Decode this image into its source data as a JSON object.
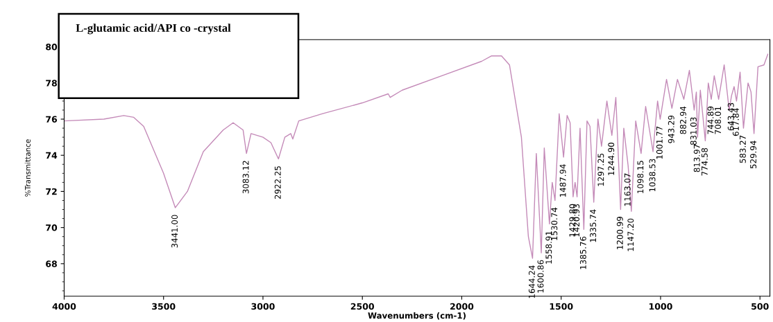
{
  "chart_data": {
    "type": "line",
    "title": "L-glutamic acid/API co -crystal",
    "xlabel": "Wavenumbers (cm-1)",
    "ylabel": "%Transmittance",
    "xlim": [
      4000,
      450
    ],
    "ylim": [
      66.2,
      80.4
    ],
    "xticks": [
      4000,
      3500,
      3000,
      2500,
      2000,
      1500,
      1000,
      500
    ],
    "yticks": [
      68,
      70,
      72,
      74,
      76,
      78,
      80
    ],
    "grid": false,
    "legend": false,
    "marker": "none",
    "line_style": "solid",
    "series": [
      {
        "color": "#c48ab8",
        "x": [
          4000,
          3800,
          3700,
          3650,
          3600,
          3500,
          3441,
          3380,
          3300,
          3200,
          3150,
          3100,
          3083,
          3060,
          3000,
          2960,
          2922,
          2890,
          2860,
          2850,
          2820,
          2700,
          2500,
          2370,
          2360,
          2300,
          2100,
          1900,
          1850,
          1800,
          1760,
          1700,
          1665,
          1644,
          1625,
          1600,
          1585,
          1559,
          1545,
          1531,
          1510,
          1488,
          1470,
          1455,
          1440,
          1430,
          1420,
          1405,
          1386,
          1370,
          1355,
          1336,
          1315,
          1297,
          1270,
          1245,
          1225,
          1201,
          1185,
          1163,
          1147,
          1125,
          1098,
          1075,
          1038,
          1015,
          1002,
          970,
          943,
          915,
          883,
          855,
          831,
          820,
          814,
          800,
          775,
          760,
          745,
          730,
          708,
          680,
          655,
          643,
          630,
          618,
          600,
          583,
          560,
          545,
          530,
          510,
          480,
          460
        ],
        "values": [
          75.9,
          76.0,
          76.2,
          76.1,
          75.6,
          73.0,
          71.1,
          72.0,
          74.2,
          75.4,
          75.8,
          75.4,
          74.1,
          75.2,
          75.0,
          74.7,
          73.8,
          75.0,
          75.2,
          74.9,
          75.9,
          76.3,
          76.9,
          77.4,
          77.2,
          77.6,
          78.4,
          79.2,
          79.5,
          79.5,
          79.0,
          75.0,
          69.5,
          68.3,
          74.1,
          68.6,
          74.4,
          70.2,
          72.5,
          71.5,
          76.3,
          73.9,
          76.2,
          75.8,
          71.7,
          72.5,
          71.7,
          75.5,
          69.9,
          75.9,
          75.6,
          71.4,
          76.0,
          74.5,
          77.0,
          75.1,
          77.2,
          71.0,
          75.5,
          73.4,
          70.9,
          75.9,
          74.1,
          76.7,
          74.2,
          77.0,
          76.0,
          78.2,
          76.6,
          78.2,
          77.1,
          78.7,
          76.5,
          77.5,
          75.0,
          77.6,
          74.8,
          78.0,
          77.1,
          78.4,
          77.1,
          79.0,
          76.5,
          77.3,
          77.8,
          77.0,
          78.6,
          75.5,
          78.0,
          77.5,
          75.2,
          78.9,
          79.0,
          79.6
        ]
      }
    ],
    "annotations": [
      {
        "text": "3441.00",
        "x": 3441,
        "y": 71.1
      },
      {
        "text": "3083.12",
        "x": 3083,
        "y": 74.1
      },
      {
        "text": "2922.25",
        "x": 2922,
        "y": 73.8
      },
      {
        "text": "1644.24",
        "x": 1644,
        "y": 68.3
      },
      {
        "text": "1600.86",
        "x": 1600,
        "y": 68.6
      },
      {
        "text": "1558.91",
        "x": 1559,
        "y": 70.2
      },
      {
        "text": "1530.74",
        "x": 1531,
        "y": 71.5
      },
      {
        "text": "1487.94",
        "x": 1488,
        "y": 73.9
      },
      {
        "text": "1429.80",
        "x": 1440,
        "y": 71.7
      },
      {
        "text": "1420.93",
        "x": 1420,
        "y": 71.7
      },
      {
        "text": "1385.76",
        "x": 1386,
        "y": 69.9
      },
      {
        "text": "1335.74",
        "x": 1336,
        "y": 71.4
      },
      {
        "text": "1297.25",
        "x": 1297,
        "y": 74.5
      },
      {
        "text": "1244.90",
        "x": 1245,
        "y": 75.1
      },
      {
        "text": "1200.99",
        "x": 1201,
        "y": 71.0
      },
      {
        "text": "1163.07",
        "x": 1163,
        "y": 73.4
      },
      {
        "text": "1147.20",
        "x": 1147,
        "y": 70.9
      },
      {
        "text": "1098.15",
        "x": 1098,
        "y": 74.1
      },
      {
        "text": "1038.53",
        "x": 1038,
        "y": 74.2
      },
      {
        "text": "1001.77",
        "x": 1002,
        "y": 76.0
      },
      {
        "text": "943.29",
        "x": 943,
        "y": 76.6
      },
      {
        "text": "882.94",
        "x": 883,
        "y": 77.1
      },
      {
        "text": "831.03",
        "x": 831,
        "y": 76.5
      },
      {
        "text": "813.97",
        "x": 814,
        "y": 75.0
      },
      {
        "text": "774.58",
        "x": 775,
        "y": 74.8
      },
      {
        "text": "744.89",
        "x": 745,
        "y": 77.1
      },
      {
        "text": "708.01",
        "x": 708,
        "y": 77.1
      },
      {
        "text": "643.43",
        "x": 643,
        "y": 77.3
      },
      {
        "text": "617.84",
        "x": 618,
        "y": 77.0
      },
      {
        "text": "583.27",
        "x": 583,
        "y": 75.5
      },
      {
        "text": "529.94",
        "x": 530,
        "y": 75.2
      }
    ]
  }
}
